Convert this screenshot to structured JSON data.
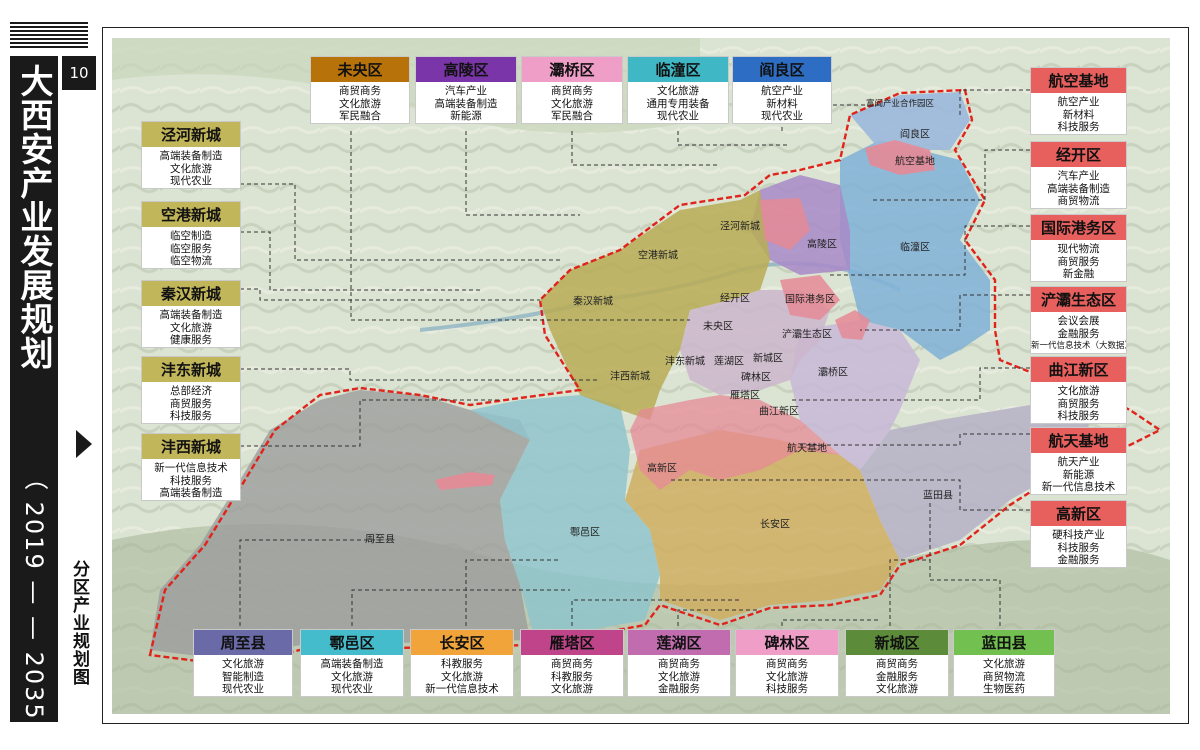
{
  "page": {
    "page_number": "10",
    "title": "大西安产业发展规划",
    "years": "（ 2019 — — 2035 ）",
    "subtitle": "分区产业规划图"
  },
  "colors": {
    "boundary": "#e0231b",
    "olive_new_cities": "#b8ab55",
    "purple_gaoling": "#a88ac8",
    "blue_lintong": "#7fb2d8",
    "pink_districts": "#e58a96",
    "blue_huyi": "#8fc4cc",
    "grey_zhouzhi": "#9c9c9c",
    "tan_changan": "#cfae62"
  },
  "cards": [
    {
      "key": "weiyang",
      "name": "未央区",
      "color": "#b8720a",
      "items": [
        "商贸商务",
        "文化旅游",
        "军民融合"
      ]
    },
    {
      "key": "gaoling",
      "name": "高陵区",
      "color": "#7a35a8",
      "items": [
        "汽车产业",
        "高端装备制造",
        "新能源"
      ]
    },
    {
      "key": "baqiao",
      "name": "灞桥区",
      "color": "#ef9ec8",
      "items": [
        "商贸商务",
        "文化旅游",
        "军民融合"
      ]
    },
    {
      "key": "lintong",
      "name": "临潼区",
      "color": "#3fb7c4",
      "items": [
        "文化旅游",
        "通用专用装备",
        "现代农业"
      ]
    },
    {
      "key": "yanliang",
      "name": "阎良区",
      "color": "#2d6ec4",
      "items": [
        "航空产业",
        "新材料",
        "现代农业"
      ]
    },
    {
      "key": "jinghe",
      "name": "泾河新城",
      "color": "#c2b65a",
      "items": [
        "高端装备制造",
        "文化旅游",
        "现代农业"
      ]
    },
    {
      "key": "konggang",
      "name": "空港新城",
      "color": "#c2b65a",
      "items": [
        "临空制造",
        "临空服务",
        "临空物流"
      ]
    },
    {
      "key": "qinhan",
      "name": "秦汉新城",
      "color": "#c2b65a",
      "items": [
        "高端装备制造",
        "文化旅游",
        "健康服务"
      ]
    },
    {
      "key": "fengdong",
      "name": "沣东新城",
      "color": "#c2b65a",
      "items": [
        "总部经济",
        "商贸服务",
        "科技服务"
      ]
    },
    {
      "key": "fengxi",
      "name": "沣西新城",
      "color": "#c2b65a",
      "items": [
        "新一代信息技术",
        "科技服务",
        "高端装备制造"
      ]
    },
    {
      "key": "hangkong",
      "name": "航空基地",
      "color": "#e8605e",
      "items": [
        "航空产业",
        "新材料",
        "科技服务"
      ]
    },
    {
      "key": "jingkai",
      "name": "经开区",
      "color": "#e8605e",
      "items": [
        "汽车产业",
        "高端装备制造",
        "商贸物流"
      ]
    },
    {
      "key": "gangwu",
      "name": "国际港务区",
      "color": "#e8605e",
      "items": [
        "现代物流",
        "商贸服务",
        "新金融"
      ]
    },
    {
      "key": "chanba",
      "name": "浐灞生态区",
      "color": "#e8605e",
      "items": [
        "会议会展",
        "金融服务",
        "新一代信息技术（大数据）"
      ]
    },
    {
      "key": "qujiang",
      "name": "曲江新区",
      "color": "#e8605e",
      "items": [
        "文化旅游",
        "商贸服务",
        "科技服务"
      ]
    },
    {
      "key": "hangtian",
      "name": "航天基地",
      "color": "#e8605e",
      "items": [
        "航天产业",
        "新能源",
        "新一代信息技术"
      ]
    },
    {
      "key": "gaoxin",
      "name": "高新区",
      "color": "#e8605e",
      "items": [
        "硬科技产业",
        "科技服务",
        "金融服务"
      ]
    },
    {
      "key": "zhouzhi",
      "name": "周至县",
      "color": "#6a6aa8",
      "items": [
        "文化旅游",
        "智能制造",
        "现代农业"
      ]
    },
    {
      "key": "huyi",
      "name": "鄠邑区",
      "color": "#45bccc",
      "items": [
        "高端装备制造",
        "文化旅游",
        "现代农业"
      ]
    },
    {
      "key": "changan",
      "name": "长安区",
      "color": "#f0a43a",
      "items": [
        "科教服务",
        "文化旅游",
        "新一代信息技术"
      ]
    },
    {
      "key": "yanta",
      "name": "雁塔区",
      "color": "#c0448a",
      "items": [
        "商贸商务",
        "科教服务",
        "文化旅游"
      ]
    },
    {
      "key": "lianhu",
      "name": "莲湖区",
      "color": "#c06cae",
      "items": [
        "商贸商务",
        "文化旅游",
        "金融服务"
      ]
    },
    {
      "key": "beilin",
      "name": "碑林区",
      "color": "#ef9ec8",
      "items": [
        "商贸商务",
        "文化旅游",
        "科技服务"
      ]
    },
    {
      "key": "xincheng",
      "name": "新城区",
      "color": "#5c8c3a",
      "items": [
        "商贸商务",
        "金融服务",
        "文化旅游"
      ]
    },
    {
      "key": "lantian",
      "name": "蓝田县",
      "color": "#72c050",
      "items": [
        "文化旅游",
        "商贸物流",
        "生物医药"
      ]
    }
  ],
  "map_labels": [
    {
      "key": "yanliang",
      "text": "阎良区"
    },
    {
      "key": "fuyan",
      "text": "富阎产业合作园区"
    },
    {
      "key": "hangkong",
      "text": "航空基地"
    },
    {
      "key": "jinghe",
      "text": "泾河新城"
    },
    {
      "key": "gaoling",
      "text": "高陵区"
    },
    {
      "key": "lintong",
      "text": "临潼区"
    },
    {
      "key": "konggang",
      "text": "空港新城"
    },
    {
      "key": "qinhan",
      "text": "秦汉新城"
    },
    {
      "key": "jingkai",
      "text": "经开区"
    },
    {
      "key": "gangwu",
      "text": "国际港务区"
    },
    {
      "key": "weiyang",
      "text": "未央区"
    },
    {
      "key": "chanba",
      "text": "浐灞生态区"
    },
    {
      "key": "fengdong",
      "text": "沣东新城"
    },
    {
      "key": "lianhu",
      "text": "莲湖区"
    },
    {
      "key": "xincheng",
      "text": "新城区"
    },
    {
      "key": "baqiao",
      "text": "灞桥区"
    },
    {
      "key": "fengxi",
      "text": "沣西新城"
    },
    {
      "key": "beilin",
      "text": "碑林区"
    },
    {
      "key": "yanta",
      "text": "雁塔区"
    },
    {
      "key": "qujiang",
      "text": "曲江新区"
    },
    {
      "key": "hangtian",
      "text": "航天基地"
    },
    {
      "key": "gaoxin",
      "text": "高新区"
    },
    {
      "key": "lantian",
      "text": "蓝田县"
    },
    {
      "key": "changan",
      "text": "长安区"
    },
    {
      "key": "huyi",
      "text": "鄠邑区"
    },
    {
      "key": "zhouzhi",
      "text": "周至县"
    }
  ]
}
